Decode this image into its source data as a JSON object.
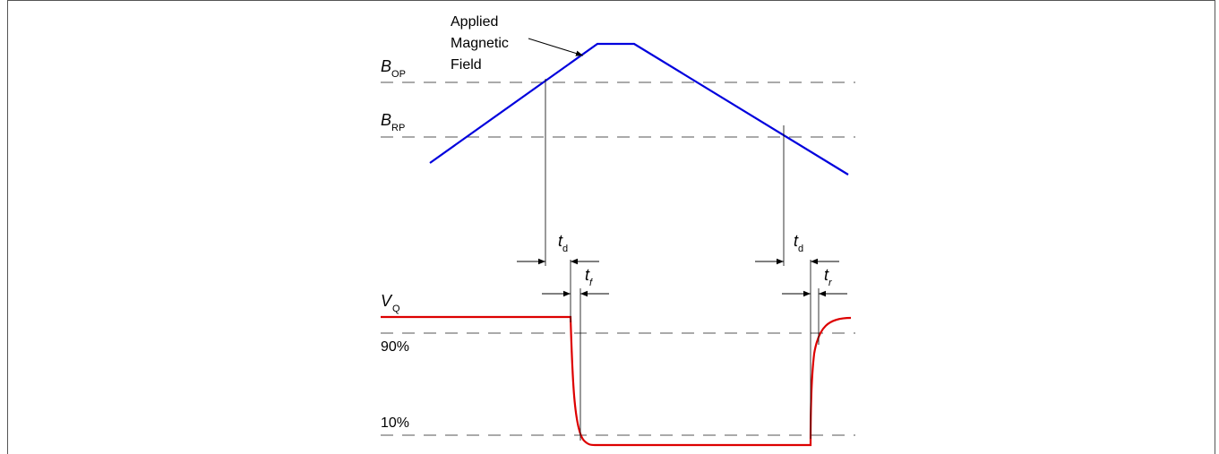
{
  "field_label": {
    "line1": "Applied",
    "line2": "Magnetic",
    "line3": "Field"
  },
  "thresholds": {
    "bop": {
      "main": "B",
      "sub": "OP"
    },
    "brp": {
      "main": "B",
      "sub": "RP"
    }
  },
  "output": {
    "vq": {
      "main": "V",
      "sub": "Q"
    },
    "level_high": "90%",
    "level_low": "10%"
  },
  "timing": {
    "td_left": {
      "main": "t",
      "sub": "d"
    },
    "tf": {
      "main": "t",
      "sub": "f"
    },
    "td_right": {
      "main": "t",
      "sub": "d"
    },
    "tr": {
      "main": "t",
      "sub": "r"
    }
  },
  "colors": {
    "field_curve": "#0000dd",
    "output_curve": "#dd0000",
    "guide": "#555555"
  }
}
